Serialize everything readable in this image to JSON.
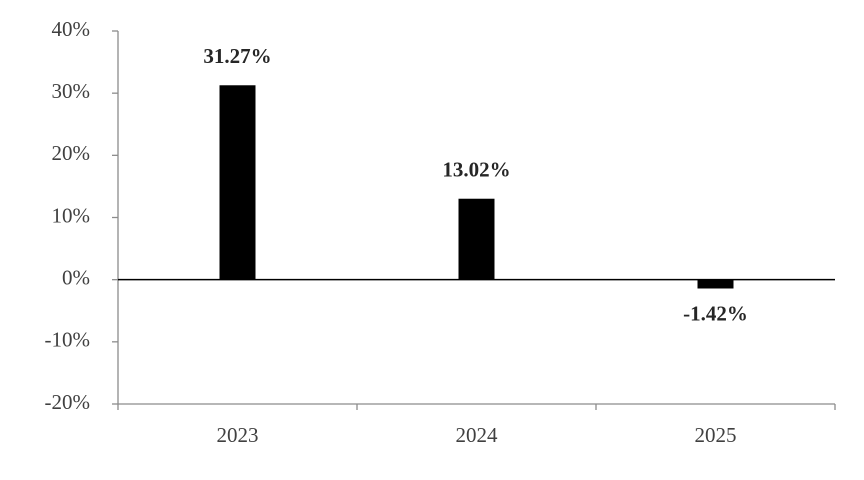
{
  "chart_data": {
    "type": "bar",
    "categories": [
      "2023",
      "2024",
      "2025"
    ],
    "values": [
      31.27,
      13.02,
      -1.42
    ],
    "value_labels": [
      "31.27%",
      "13.02%",
      "-1.42%"
    ],
    "color": "#000000",
    "ylim": [
      -20,
      40
    ],
    "yticks": [
      {
        "value": -20,
        "label": "-20%"
      },
      {
        "value": -10,
        "label": "-10%"
      },
      {
        "value": 0,
        "label": "0%"
      },
      {
        "value": 10,
        "label": "10%"
      },
      {
        "value": 20,
        "label": "20%"
      },
      {
        "value": 30,
        "label": "30%"
      },
      {
        "value": 40,
        "label": "40%"
      }
    ],
    "grid": false
  }
}
